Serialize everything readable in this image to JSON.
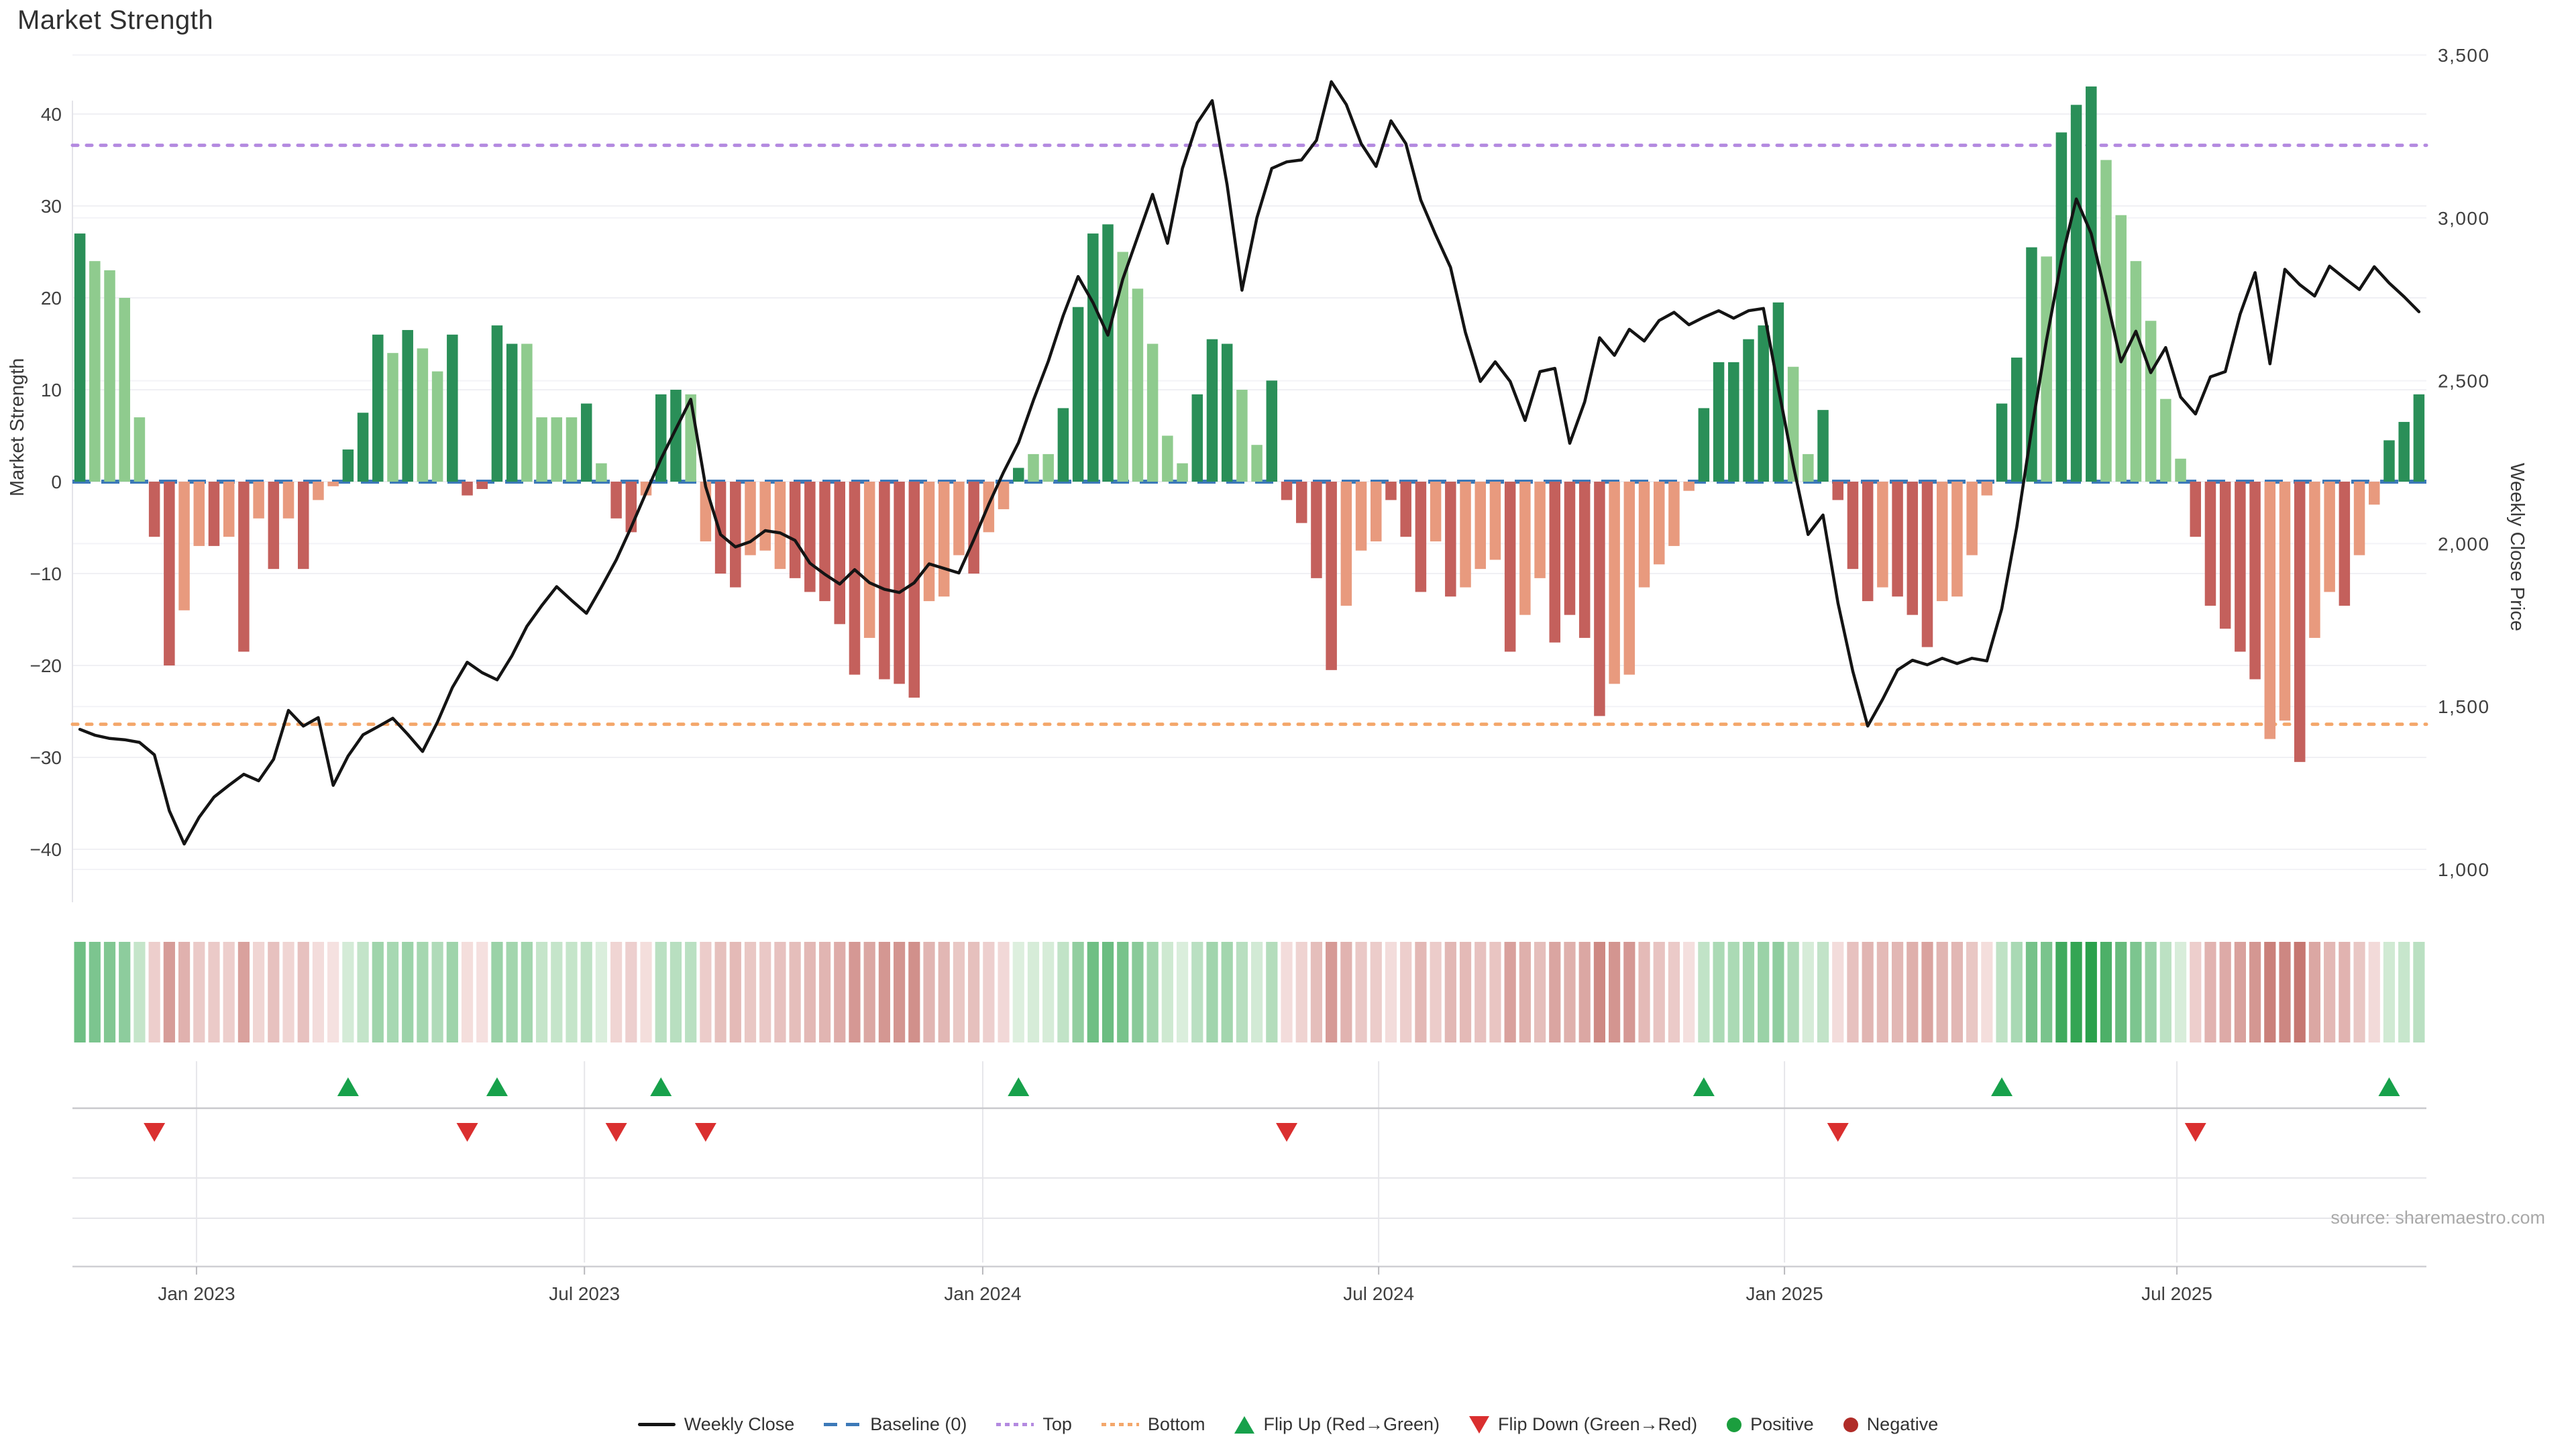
{
  "title": "Market Strength",
  "source": "source: sharemaestro.com",
  "y_left": {
    "title": "Market Strength",
    "ticks": [
      40,
      30,
      20,
      10,
      0,
      -10,
      -20,
      -30,
      -40
    ]
  },
  "y_right": {
    "title": "Weekly Close Price",
    "ticks": [
      3500,
      3000,
      2500,
      2000,
      1500,
      1000
    ]
  },
  "x_axis": {
    "months": [
      {
        "label": "Jan 2023",
        "f": 0.0527
      },
      {
        "label": "Jul 2023",
        "f": 0.2175
      },
      {
        "label": "Jan 2024",
        "f": 0.3867
      },
      {
        "label": "Jul 2024",
        "f": 0.5549
      },
      {
        "label": "Jan 2025",
        "f": 0.7273
      },
      {
        "label": "Jul 2025",
        "f": 0.894
      }
    ]
  },
  "legend": {
    "items": [
      {
        "label": "Weekly Close"
      },
      {
        "label": "Baseline (0)"
      },
      {
        "label": "Top"
      },
      {
        "label": "Bottom"
      },
      {
        "label": "Flip Up (Red→Green)"
      },
      {
        "label": "Flip Down (Green→Red)"
      },
      {
        "label": "Positive"
      },
      {
        "label": "Negative"
      }
    ]
  },
  "colors": {
    "bar_green_dark": "#2a8f58",
    "bar_green_light": "#8fcb8e",
    "bar_red_dark": "#c4605c",
    "bar_red_light": "#e89a7e",
    "line": "#141414",
    "baseline": "#3c79b8",
    "top_line": "#b48ae0",
    "bottom_line": "#f4a76b",
    "flip_up": "#17a14b",
    "flip_down": "#da2f2f",
    "positive_dot": "#1b9e3e",
    "negative_dot": "#b02c28",
    "grid": "#f0f0f4",
    "grid_light": "#f3f3f7",
    "panel_grid": "#e6e6ea",
    "separator": "#c9c9cd",
    "axis_line": "#cfcfd4",
    "tick_text": "#3f3f3f"
  },
  "chart_data": {
    "type": "combo",
    "x_unit": "weeks",
    "baseline": 0,
    "top_line_value": 36.6,
    "bottom_line_value": -26.4,
    "ylim_left": [
      -46,
      42
    ],
    "ylim_right": [
      1000,
      3500
    ],
    "legend_position": "bottom-center",
    "series": [
      {
        "name": "Market Strength",
        "type": "bar",
        "axis": "left",
        "values": [
          27,
          24,
          23,
          20,
          7,
          -6,
          -20,
          -14,
          -7,
          -7,
          -6,
          -18.5,
          -4,
          -9.5,
          -4,
          -9.5,
          -2,
          -0.5,
          3.5,
          7.5,
          16,
          14,
          16.5,
          14.5,
          12,
          16,
          -1.5,
          -0.8,
          17,
          15,
          15,
          7,
          7,
          7,
          8.5,
          2,
          -4,
          -5.5,
          -1.5,
          9.5,
          10,
          9.5,
          -6.5,
          -10,
          -11.5,
          -8,
          -7.5,
          -9.5,
          -10.5,
          -12,
          -13,
          -15.5,
          -21,
          -17,
          -21.5,
          -22,
          -23.5,
          -13,
          -12.5,
          -8,
          -10,
          -5.5,
          -3,
          1.5,
          3,
          3,
          8,
          19,
          27,
          28,
          25,
          21,
          15,
          5,
          2,
          9.5,
          15.5,
          15,
          10,
          4,
          11,
          -2,
          -4.5,
          -10.5,
          -20.5,
          -13.5,
          -7.5,
          -6.5,
          -2,
          -6,
          -12,
          -6.5,
          -12.5,
          -11.5,
          -9.5,
          -8.5,
          -18.5,
          -14.5,
          -10.5,
          -17.5,
          -14.5,
          -17,
          -25.5,
          -22,
          -21,
          -11.5,
          -9,
          -7,
          -1,
          8,
          13,
          13,
          15.5,
          17,
          19.5,
          12.5,
          3,
          7.8,
          -2,
          -9.5,
          -13,
          -11.5,
          -12.5,
          -14.5,
          -18,
          -13,
          -12.5,
          -8,
          -1.5,
          8.5,
          13.5,
          25.5,
          24.5,
          38,
          41,
          43,
          35,
          29,
          24,
          17.5,
          9,
          2.5,
          -6,
          -13.5,
          -16,
          -18.5,
          -21.5,
          -28,
          -26,
          -30.5,
          -17,
          -12,
          -13.5,
          -8,
          -2.5,
          4.5,
          6.5,
          9.5
        ],
        "shade": [
          "d",
          "l",
          "l",
          "l",
          "l",
          "d",
          "d",
          "l",
          "l",
          "d",
          "l",
          "d",
          "l",
          "d",
          "l",
          "d",
          "l",
          "l",
          "d",
          "d",
          "d",
          "l",
          "d",
          "l",
          "l",
          "d",
          "d",
          "d",
          "d",
          "d",
          "l",
          "l",
          "l",
          "l",
          "d",
          "l",
          "d",
          "d",
          "l",
          "d",
          "d",
          "l",
          "l",
          "d",
          "d",
          "l",
          "l",
          "l",
          "d",
          "d",
          "d",
          "d",
          "d",
          "l",
          "d",
          "d",
          "d",
          "l",
          "l",
          "l",
          "d",
          "l",
          "l",
          "d",
          "l",
          "l",
          "d",
          "d",
          "d",
          "d",
          "l",
          "l",
          "l",
          "l",
          "l",
          "d",
          "d",
          "d",
          "l",
          "l",
          "d",
          "d",
          "d",
          "d",
          "d",
          "l",
          "l",
          "l",
          "d",
          "d",
          "d",
          "l",
          "d",
          "l",
          "l",
          "l",
          "d",
          "l",
          "l",
          "d",
          "d",
          "d",
          "d",
          "l",
          "l",
          "l",
          "l",
          "l",
          "l",
          "d",
          "d",
          "d",
          "d",
          "d",
          "d",
          "l",
          "l",
          "d",
          "d",
          "d",
          "d",
          "l",
          "d",
          "d",
          "d",
          "l",
          "l",
          "l",
          "l",
          "d",
          "d",
          "d",
          "l",
          "d",
          "d",
          "d",
          "l",
          "l",
          "l",
          "l",
          "l",
          "l",
          "d",
          "d",
          "d",
          "d",
          "d",
          "l",
          "l",
          "d",
          "l",
          "l",
          "d",
          "l",
          "l",
          "d",
          "d",
          "d"
        ]
      },
      {
        "name": "Weekly Close",
        "type": "line",
        "axis": "right",
        "values": [
          1430,
          1412,
          1402,
          1398,
          1390,
          1352,
          1180,
          1078,
          1160,
          1222,
          1258,
          1292,
          1272,
          1338,
          1488,
          1440,
          1466,
          1258,
          1348,
          1413,
          1438,
          1464,
          1415,
          1362,
          1452,
          1558,
          1636,
          1604,
          1582,
          1656,
          1746,
          1810,
          1868,
          1826,
          1786,
          1866,
          1950,
          2050,
          2156,
          2260,
          2352,
          2443,
          2175,
          2028,
          1990,
          2006,
          2040,
          2033,
          2010,
          1940,
          1906,
          1876,
          1920,
          1880,
          1860,
          1850,
          1880,
          1938,
          1924,
          1910,
          2012,
          2120,
          2220,
          2310,
          2440,
          2560,
          2700,
          2820,
          2740,
          2640,
          2812,
          2942,
          3072,
          2922,
          3152,
          3292,
          3360,
          3102,
          2778,
          3000,
          3152,
          3172,
          3178,
          3238,
          3418,
          3348,
          3228,
          3158,
          3298,
          3228,
          3055,
          2948,
          2848,
          2648,
          2498,
          2558,
          2498,
          2378,
          2528,
          2538,
          2308,
          2435,
          2632,
          2578,
          2658,
          2622,
          2685,
          2710,
          2672,
          2695,
          2715,
          2692,
          2715,
          2722,
          2478,
          2242,
          2028,
          2088,
          1818,
          1608,
          1440,
          1522,
          1612,
          1642,
          1628,
          1648,
          1632,
          1648,
          1640,
          1800,
          2050,
          2350,
          2625,
          2870,
          3058,
          2952,
          2760,
          2558,
          2652,
          2525,
          2602,
          2450,
          2398,
          2512,
          2528,
          2705,
          2832,
          2552,
          2842,
          2795,
          2760,
          2852,
          2815,
          2780,
          2850,
          2800,
          2758,
          2712
        ]
      },
      {
        "name": "Strength Heatmap",
        "type": "heatmap",
        "note": "one cell per week, color intensity follows Market Strength sign/magnitude"
      }
    ],
    "flip_up_weeks": [
      18,
      28,
      39,
      63,
      109,
      129,
      155
    ],
    "flip_down_weeks": [
      5,
      26,
      36,
      42,
      81,
      118,
      142
    ]
  }
}
